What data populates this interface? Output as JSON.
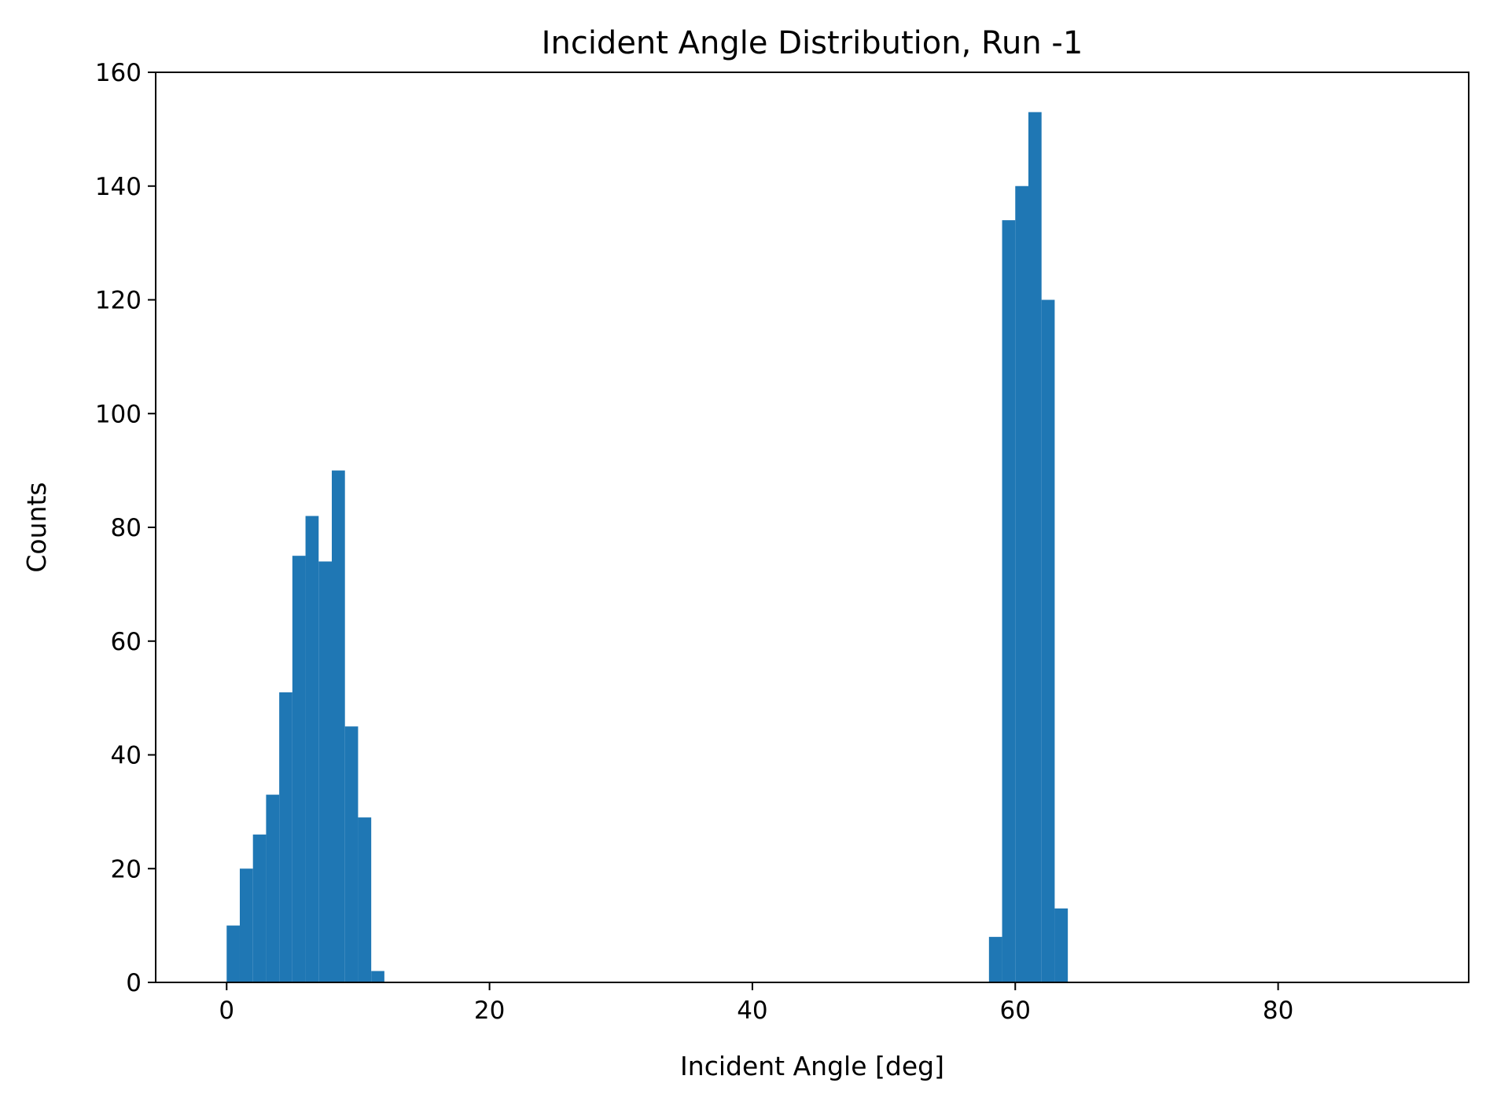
{
  "chart_data": {
    "type": "bar",
    "title": "Incident Angle Distribution, Run -1",
    "xlabel": "Incident Angle [deg]",
    "ylabel": "Counts",
    "xlim": [
      -5.4,
      94.5
    ],
    "ylim": [
      0,
      160
    ],
    "x_ticks": [
      0,
      20,
      40,
      60,
      80
    ],
    "y_ticks": [
      0,
      20,
      40,
      60,
      80,
      100,
      120,
      140,
      160
    ],
    "x_tick_labels": [
      "0",
      "20",
      "40",
      "60",
      "80"
    ],
    "y_tick_labels": [
      "0",
      "20",
      "40",
      "60",
      "80",
      "100",
      "120",
      "140",
      "160"
    ],
    "bin_width": 1,
    "bins": [
      {
        "x": 0,
        "count": 10
      },
      {
        "x": 1,
        "count": 20
      },
      {
        "x": 2,
        "count": 26
      },
      {
        "x": 3,
        "count": 33
      },
      {
        "x": 4,
        "count": 51
      },
      {
        "x": 5,
        "count": 75
      },
      {
        "x": 6,
        "count": 82
      },
      {
        "x": 7,
        "count": 74
      },
      {
        "x": 8,
        "count": 90
      },
      {
        "x": 9,
        "count": 45
      },
      {
        "x": 10,
        "count": 29
      },
      {
        "x": 11,
        "count": 2
      },
      {
        "x": 58,
        "count": 8
      },
      {
        "x": 59,
        "count": 134
      },
      {
        "x": 60,
        "count": 140
      },
      {
        "x": 61,
        "count": 153
      },
      {
        "x": 62,
        "count": 120
      },
      {
        "x": 63,
        "count": 13
      }
    ],
    "bar_color": "#1f77b4",
    "grid": false,
    "legend": "none"
  }
}
